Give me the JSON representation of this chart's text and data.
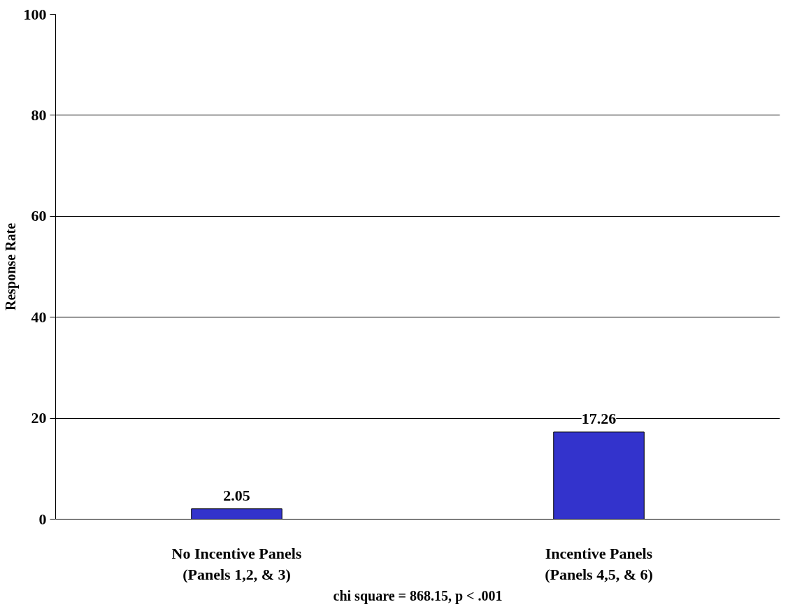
{
  "chart_data": {
    "type": "bar",
    "categories": [
      "No Incentive Panels\n(Panels 1,2, & 3)",
      "Incentive Panels\n(Panels 4,5, & 6)"
    ],
    "values": [
      2.05,
      17.26
    ],
    "color": "#3333cc",
    "ylabel": "Response Rate",
    "xlabel": "chi square = 868.15, p < .001",
    "ylim": [
      0,
      100
    ],
    "yticks": [
      0,
      20,
      40,
      60,
      80,
      100
    ],
    "grid": "y",
    "data_labels": true
  }
}
